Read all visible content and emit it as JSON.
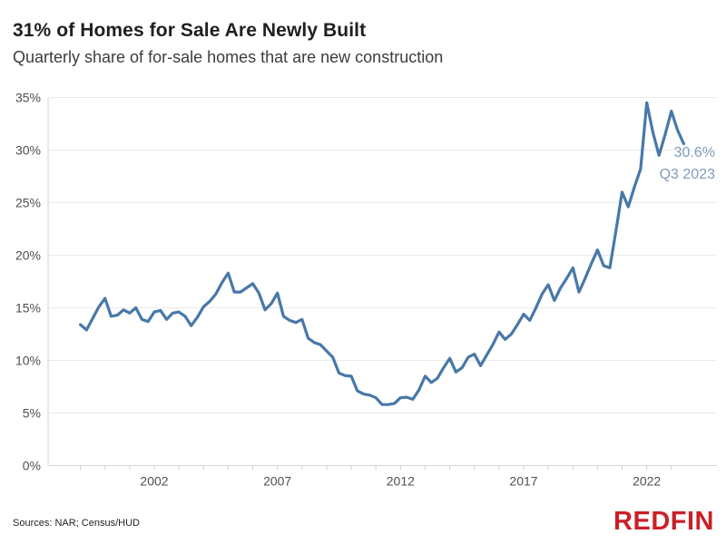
{
  "header": {
    "title": "31% of Homes for Sale Are Newly Built",
    "subtitle": "Quarterly share of for-sale homes that are new construction"
  },
  "chart_data": {
    "type": "line",
    "title": "31% of Homes for Sale Are Newly Built",
    "subtitle": "Quarterly share of for-sale homes that are new construction",
    "series_name": "Share of for-sale homes that are new construction (%)",
    "frequency": "quarterly",
    "start_year": 1999,
    "start_quarter": 1,
    "end_period": "Q3 2023",
    "values": [
      13.4,
      12.9,
      14.0,
      15.1,
      15.9,
      14.2,
      14.3,
      14.8,
      14.5,
      15.0,
      13.9,
      13.7,
      14.6,
      14.75,
      13.9,
      14.5,
      14.6,
      14.2,
      13.3,
      14.1,
      15.1,
      15.6,
      16.3,
      17.4,
      18.3,
      16.5,
      16.5,
      16.9,
      17.3,
      16.4,
      14.8,
      15.4,
      16.4,
      14.2,
      13.8,
      13.6,
      13.9,
      12.1,
      11.7,
      11.5,
      10.9,
      10.3,
      8.8,
      8.55,
      8.5,
      7.1,
      6.8,
      6.7,
      6.45,
      5.8,
      5.8,
      5.9,
      6.45,
      6.5,
      6.3,
      7.2,
      8.5,
      7.9,
      8.3,
      9.3,
      10.2,
      8.9,
      9.3,
      10.3,
      10.6,
      9.5,
      10.5,
      11.5,
      12.7,
      12.0,
      12.5,
      13.4,
      14.4,
      13.8,
      15.0,
      16.3,
      17.2,
      15.7,
      16.9,
      17.8,
      18.8,
      16.5,
      17.8,
      19.2,
      20.5,
      19.0,
      18.8,
      22.3,
      26.0,
      24.6,
      26.5,
      28.2,
      34.5,
      31.7,
      29.5,
      31.5,
      33.7,
      31.9,
      30.6
    ],
    "ylim": [
      0,
      35
    ],
    "grid": "horizontal",
    "legend": "none",
    "y_axis": {
      "ticks": [
        {
          "value": 0,
          "label": "0%"
        },
        {
          "value": 5,
          "label": "5%"
        },
        {
          "value": 10,
          "label": "10%"
        },
        {
          "value": 15,
          "label": "15%"
        },
        {
          "value": 20,
          "label": "20%"
        },
        {
          "value": 25,
          "label": "25%"
        },
        {
          "value": 30,
          "label": "30%"
        },
        {
          "value": 35,
          "label": "35%"
        }
      ]
    },
    "x_axis": {
      "ticks": [
        {
          "year": 2002,
          "label": "2002"
        },
        {
          "year": 2007,
          "label": "2007"
        },
        {
          "year": 2012,
          "label": "2012"
        },
        {
          "year": 2017,
          "label": "2017"
        },
        {
          "year": 2022,
          "label": "2022"
        }
      ],
      "minor_tick_start_year": 1999,
      "minor_tick_end_year": 2023
    },
    "annotation": {
      "value": "30.6%",
      "label": "Q3 2023",
      "color": "#7f9bba"
    },
    "line_color": "#4878a8",
    "gridline_color": "#ebebeb",
    "axis_line_color": "#d6d6d6",
    "tick_label_color": "#4f4f4f"
  },
  "footer": {
    "sources": "Sources: NAR; Census/HUD",
    "logo": "REDFIN",
    "logo_color": "#c82128"
  }
}
